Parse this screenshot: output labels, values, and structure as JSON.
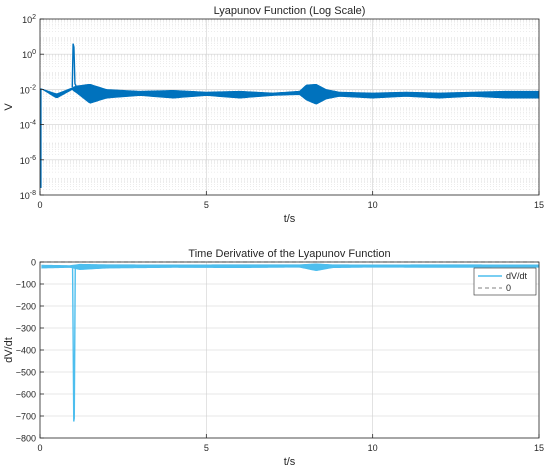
{
  "chart_data": [
    {
      "type": "line",
      "title": "Lyapunov Function (Log Scale)",
      "xlabel": "t/s",
      "ylabel": "V",
      "xlim": [
        0,
        15
      ],
      "ylim_exponents": [
        -8,
        2
      ],
      "y_scale": "log",
      "grid": true,
      "minor_grid": true,
      "x_ticks": [
        0,
        5,
        10,
        15
      ],
      "x_tick_labels": [
        "0",
        "5",
        "10",
        "15"
      ],
      "y_ticks": [
        -8,
        -6,
        -4,
        -2,
        0,
        2
      ],
      "y_tick_labels": [
        {
          "base": "10",
          "exp": "-8"
        },
        {
          "base": "10",
          "exp": "-6"
        },
        {
          "base": "10",
          "exp": "-4"
        },
        {
          "base": "10",
          "exp": "-2"
        },
        {
          "base": "10",
          "exp": "0"
        },
        {
          "base": "10",
          "exp": "2"
        }
      ],
      "series": [
        {
          "color": "#0072bd",
          "band_x": [
            0.02,
            0.5,
            0.98,
            1.02,
            1.1,
            1.5,
            2.0,
            3.0,
            4.0,
            5.0,
            6.0,
            7.0,
            7.8,
            8.0,
            8.3,
            8.6,
            9.0,
            10.0,
            11.0,
            12.0,
            13.0,
            14.0,
            15.0
          ],
          "band_low_exp": [
            -1.95,
            -2.5,
            -2.0,
            -2.1,
            -2.2,
            -2.8,
            -2.5,
            -2.35,
            -2.5,
            -2.35,
            -2.5,
            -2.35,
            -2.3,
            -2.6,
            -2.85,
            -2.55,
            -2.4,
            -2.5,
            -2.4,
            -2.5,
            -2.4,
            -2.5,
            -2.5
          ],
          "band_high_exp": [
            -1.95,
            -2.25,
            -1.9,
            -1.85,
            -1.8,
            -1.7,
            -2.0,
            -2.1,
            -2.05,
            -2.15,
            -2.1,
            -2.2,
            -2.1,
            -1.75,
            -1.7,
            -2.0,
            -2.15,
            -2.2,
            -2.15,
            -2.2,
            -2.15,
            -2.1,
            -2.1
          ],
          "spike": {
            "t": 1.0,
            "peak_exp": 0.6
          },
          "initial_drop": {
            "t": 0.0,
            "from_exp": -1.95,
            "to_exp": -7.6
          }
        }
      ]
    },
    {
      "type": "line",
      "title": "Time Derivative of the Lyapunov Function",
      "xlabel": "t/s",
      "ylabel": "dV/dt",
      "xlim": [
        0,
        15
      ],
      "ylim": [
        -800,
        0
      ],
      "grid": true,
      "x_ticks": [
        0,
        5,
        10,
        15
      ],
      "x_tick_labels": [
        "0",
        "5",
        "10",
        "15"
      ],
      "y_ticks": [
        0,
        -100,
        -200,
        -300,
        -400,
        -500,
        -600,
        -700,
        -800
      ],
      "y_tick_labels": [
        "0",
        "−100",
        "−200",
        "−300",
        "−400",
        "−500",
        "−600",
        "−700",
        "−800"
      ],
      "legend": {
        "placement": "top-right",
        "entries": [
          {
            "label": "dV/dt",
            "color": "#4dbeee",
            "style": "solid"
          },
          {
            "label": "0",
            "color": "#808080",
            "style": "dashed"
          }
        ]
      },
      "series": [
        {
          "name": "dV/dt",
          "color": "#4dbeee",
          "band_x": [
            0.05,
            0.9,
            1.2,
            2.0,
            4.0,
            6.0,
            7.8,
            8.3,
            8.8,
            10.0,
            12.0,
            15.0
          ],
          "band_low": [
            -28,
            -25,
            -35,
            -28,
            -25,
            -26,
            -24,
            -40,
            -26,
            -24,
            -25,
            -24
          ],
          "band_high": [
            -14,
            -16,
            -10,
            -12,
            -13,
            -12,
            -12,
            -8,
            -12,
            -13,
            -12,
            -13
          ],
          "spike": {
            "t": 1.02,
            "min": -725
          }
        },
        {
          "name": "0",
          "color": "#808080",
          "values_y": 0
        }
      ]
    }
  ]
}
